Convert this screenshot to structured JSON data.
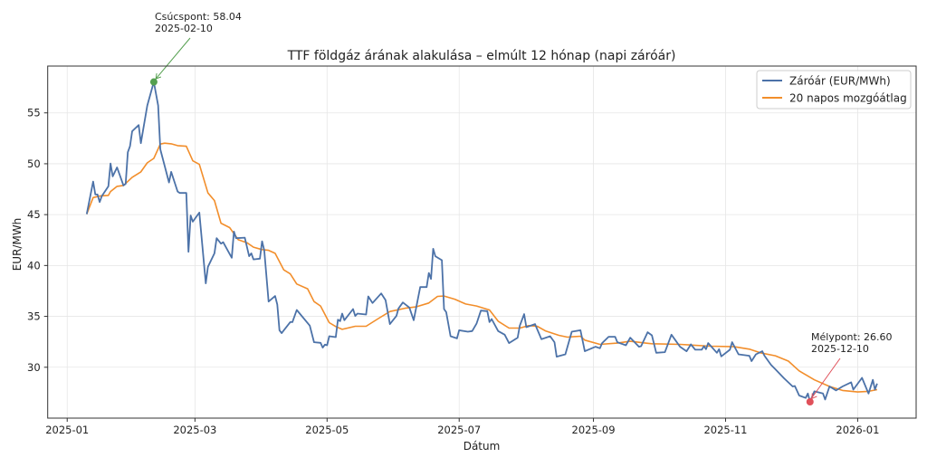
{
  "chart_data": {
    "type": "line",
    "title": "TTF földgáz árának alakulása – elmúlt 12 hónap (napi záróár)",
    "xlabel": "Dátum",
    "ylabel": "EUR/MWh",
    "x_units": "days since 2025-01-01",
    "xlim": [
      -9,
      392
    ],
    "ylim": [
      25.0,
      59.6
    ],
    "grid": true,
    "legend_placement": "top-right",
    "x_ticks": [
      {
        "day": 0,
        "label": "2025-01"
      },
      {
        "day": 59,
        "label": "2025-03"
      },
      {
        "day": 120,
        "label": "2025-05"
      },
      {
        "day": 181,
        "label": "2025-07"
      },
      {
        "day": 243,
        "label": "2025-09"
      },
      {
        "day": 304,
        "label": "2025-11"
      },
      {
        "day": 365,
        "label": "2026-01"
      }
    ],
    "y_ticks": [
      30,
      35,
      40,
      45,
      50,
      55
    ],
    "series": [
      {
        "name": "Záróár (EUR/MWh)",
        "color": "#4c72a8",
        "points": [
          [
            9,
            45.05
          ],
          [
            12,
            48.25
          ],
          [
            13,
            46.98
          ],
          [
            14,
            46.98
          ],
          [
            15,
            46.24
          ],
          [
            16,
            46.83
          ],
          [
            19,
            47.78
          ],
          [
            20,
            50.03
          ],
          [
            21,
            48.76
          ],
          [
            23,
            49.64
          ],
          [
            26,
            47.87
          ],
          [
            27,
            48.02
          ],
          [
            28,
            51.13
          ],
          [
            29,
            51.72
          ],
          [
            30,
            53.2
          ],
          [
            33,
            53.8
          ],
          [
            34,
            52.02
          ],
          [
            37,
            55.72
          ],
          [
            40,
            58.04
          ],
          [
            42,
            55.72
          ],
          [
            43,
            51.42
          ],
          [
            47,
            48.16
          ],
          [
            48,
            49.2
          ],
          [
            51,
            47.27
          ],
          [
            52,
            47.13
          ],
          [
            55,
            47.13
          ],
          [
            56,
            41.35
          ],
          [
            57,
            44.91
          ],
          [
            58,
            44.31
          ],
          [
            61,
            45.2
          ],
          [
            64,
            38.24
          ],
          [
            65,
            39.87
          ],
          [
            68,
            41.2
          ],
          [
            69,
            42.68
          ],
          [
            71,
            42.15
          ],
          [
            72,
            42.29
          ],
          [
            76,
            40.76
          ],
          [
            77,
            43.33
          ],
          [
            78,
            42.68
          ],
          [
            82,
            42.74
          ],
          [
            84,
            40.91
          ],
          [
            85,
            41.2
          ],
          [
            86,
            40.6
          ],
          [
            89,
            40.67
          ],
          [
            90,
            42.38
          ],
          [
            91,
            41.49
          ],
          [
            93,
            36.46
          ],
          [
            96,
            37.0
          ],
          [
            97,
            36.16
          ],
          [
            98,
            33.64
          ],
          [
            99,
            33.35
          ],
          [
            103,
            34.44
          ],
          [
            104,
            34.44
          ],
          [
            106,
            35.63
          ],
          [
            112,
            34.09
          ],
          [
            114,
            32.46
          ],
          [
            117,
            32.4
          ],
          [
            118,
            31.93
          ],
          [
            119,
            32.22
          ],
          [
            120,
            32.16
          ],
          [
            121,
            33.05
          ],
          [
            124,
            32.96
          ],
          [
            125,
            34.68
          ],
          [
            126,
            34.53
          ],
          [
            127,
            35.27
          ],
          [
            128,
            34.62
          ],
          [
            132,
            35.72
          ],
          [
            133,
            35.04
          ],
          [
            134,
            35.27
          ],
          [
            138,
            35.18
          ],
          [
            139,
            36.96
          ],
          [
            141,
            36.31
          ],
          [
            145,
            37.26
          ],
          [
            147,
            36.6
          ],
          [
            149,
            34.24
          ],
          [
            152,
            35.04
          ],
          [
            153,
            35.78
          ],
          [
            155,
            36.37
          ],
          [
            158,
            35.87
          ],
          [
            160,
            34.62
          ],
          [
            163,
            37.88
          ],
          [
            166,
            37.88
          ],
          [
            167,
            39.27
          ],
          [
            168,
            38.68
          ],
          [
            169,
            41.64
          ],
          [
            170,
            40.91
          ],
          [
            173,
            40.52
          ],
          [
            174,
            35.72
          ],
          [
            175,
            35.42
          ],
          [
            177,
            33.05
          ],
          [
            180,
            32.84
          ],
          [
            181,
            33.64
          ],
          [
            185,
            33.49
          ],
          [
            187,
            33.56
          ],
          [
            189,
            34.29
          ],
          [
            191,
            35.57
          ],
          [
            194,
            35.51
          ],
          [
            195,
            34.44
          ],
          [
            196,
            34.74
          ],
          [
            199,
            33.56
          ],
          [
            202,
            33.2
          ],
          [
            204,
            32.37
          ],
          [
            208,
            32.91
          ],
          [
            209,
            34.09
          ],
          [
            211,
            35.22
          ],
          [
            212,
            33.94
          ],
          [
            216,
            34.24
          ],
          [
            219,
            32.76
          ],
          [
            223,
            33.05
          ],
          [
            225,
            32.46
          ],
          [
            226,
            31.04
          ],
          [
            230,
            31.27
          ],
          [
            233,
            33.49
          ],
          [
            237,
            33.64
          ],
          [
            239,
            31.57
          ],
          [
            244,
            32.02
          ],
          [
            246,
            31.87
          ],
          [
            247,
            32.37
          ],
          [
            250,
            33.0
          ],
          [
            253,
            33.0
          ],
          [
            254,
            32.46
          ],
          [
            258,
            32.16
          ],
          [
            260,
            32.91
          ],
          [
            264,
            32.02
          ],
          [
            265,
            32.07
          ],
          [
            268,
            33.44
          ],
          [
            270,
            33.14
          ],
          [
            272,
            31.42
          ],
          [
            276,
            31.48
          ],
          [
            279,
            33.2
          ],
          [
            283,
            32.02
          ],
          [
            286,
            31.57
          ],
          [
            288,
            32.25
          ],
          [
            290,
            31.72
          ],
          [
            293,
            31.72
          ],
          [
            294,
            32.07
          ],
          [
            295,
            31.78
          ],
          [
            296,
            32.37
          ],
          [
            300,
            31.42
          ],
          [
            301,
            31.78
          ],
          [
            302,
            31.07
          ],
          [
            306,
            31.72
          ],
          [
            307,
            32.46
          ],
          [
            310,
            31.27
          ],
          [
            315,
            31.13
          ],
          [
            316,
            30.6
          ],
          [
            318,
            31.27
          ],
          [
            321,
            31.57
          ],
          [
            322,
            31.13
          ],
          [
            325,
            30.24
          ],
          [
            327,
            29.8
          ],
          [
            331,
            28.91
          ],
          [
            335,
            28.11
          ],
          [
            336,
            28.16
          ],
          [
            338,
            27.22
          ],
          [
            341,
            26.98
          ],
          [
            342,
            27.42
          ],
          [
            343,
            26.6
          ],
          [
            345,
            27.63
          ],
          [
            349,
            27.42
          ],
          [
            350,
            26.83
          ],
          [
            352,
            28.11
          ],
          [
            355,
            27.72
          ],
          [
            358,
            28.11
          ],
          [
            362,
            28.52
          ],
          [
            363,
            27.8
          ],
          [
            367,
            28.96
          ],
          [
            370,
            27.42
          ],
          [
            372,
            28.76
          ],
          [
            373,
            27.8
          ],
          [
            374,
            28.4
          ]
        ]
      },
      {
        "name": "20 napos mozgóátlag",
        "color": "#f28e2b",
        "points": [
          [
            9,
            45.05
          ],
          [
            12,
            46.68
          ],
          [
            15,
            46.83
          ],
          [
            19,
            46.89
          ],
          [
            20,
            47.27
          ],
          [
            23,
            47.78
          ],
          [
            26,
            47.87
          ],
          [
            30,
            48.67
          ],
          [
            34,
            49.2
          ],
          [
            37,
            50.09
          ],
          [
            40,
            50.53
          ],
          [
            43,
            51.93
          ],
          [
            45,
            52.02
          ],
          [
            48,
            51.96
          ],
          [
            51,
            51.78
          ],
          [
            55,
            51.72
          ],
          [
            58,
            50.29
          ],
          [
            61,
            49.94
          ],
          [
            65,
            47.13
          ],
          [
            68,
            46.38
          ],
          [
            71,
            44.16
          ],
          [
            75,
            43.72
          ],
          [
            79,
            42.53
          ],
          [
            83,
            42.24
          ],
          [
            86,
            41.8
          ],
          [
            90,
            41.56
          ],
          [
            93,
            41.49
          ],
          [
            96,
            41.2
          ],
          [
            100,
            39.57
          ],
          [
            103,
            39.18
          ],
          [
            106,
            38.18
          ],
          [
            111,
            37.71
          ],
          [
            114,
            36.46
          ],
          [
            117,
            36.02
          ],
          [
            121,
            34.38
          ],
          [
            124,
            34.0
          ],
          [
            127,
            33.73
          ],
          [
            133,
            34.03
          ],
          [
            138,
            34.03
          ],
          [
            144,
            34.83
          ],
          [
            149,
            35.48
          ],
          [
            156,
            35.8
          ],
          [
            161,
            35.93
          ],
          [
            167,
            36.31
          ],
          [
            171,
            36.96
          ],
          [
            174,
            37.0
          ],
          [
            179,
            36.69
          ],
          [
            184,
            36.22
          ],
          [
            189,
            36.02
          ],
          [
            195,
            35.63
          ],
          [
            199,
            34.53
          ],
          [
            204,
            33.85
          ],
          [
            209,
            33.85
          ],
          [
            213,
            34.09
          ],
          [
            217,
            34.03
          ],
          [
            221,
            33.56
          ],
          [
            227,
            33.14
          ],
          [
            231,
            32.96
          ],
          [
            237,
            33.05
          ],
          [
            239,
            32.67
          ],
          [
            246,
            32.25
          ],
          [
            254,
            32.37
          ],
          [
            260,
            32.55
          ],
          [
            267,
            32.37
          ],
          [
            270,
            32.31
          ],
          [
            283,
            32.25
          ],
          [
            297,
            32.07
          ],
          [
            308,
            32.02
          ],
          [
            315,
            31.78
          ],
          [
            320,
            31.42
          ],
          [
            327,
            31.13
          ],
          [
            333,
            30.6
          ],
          [
            338,
            29.64
          ],
          [
            345,
            28.76
          ],
          [
            352,
            28.11
          ],
          [
            358,
            27.72
          ],
          [
            365,
            27.57
          ],
          [
            370,
            27.63
          ],
          [
            374,
            27.8
          ]
        ]
      }
    ],
    "annotations": [
      {
        "kind": "peak",
        "line1": "Csúcspont: 58.04",
        "line2": "2025-02-10",
        "day": 40,
        "value": 58.04,
        "color": "#55a050"
      },
      {
        "kind": "trough",
        "line1": "Mélypont: 26.60",
        "line2": "2025-12-10",
        "day": 343,
        "value": 26.6,
        "color": "#e0505a"
      }
    ]
  }
}
